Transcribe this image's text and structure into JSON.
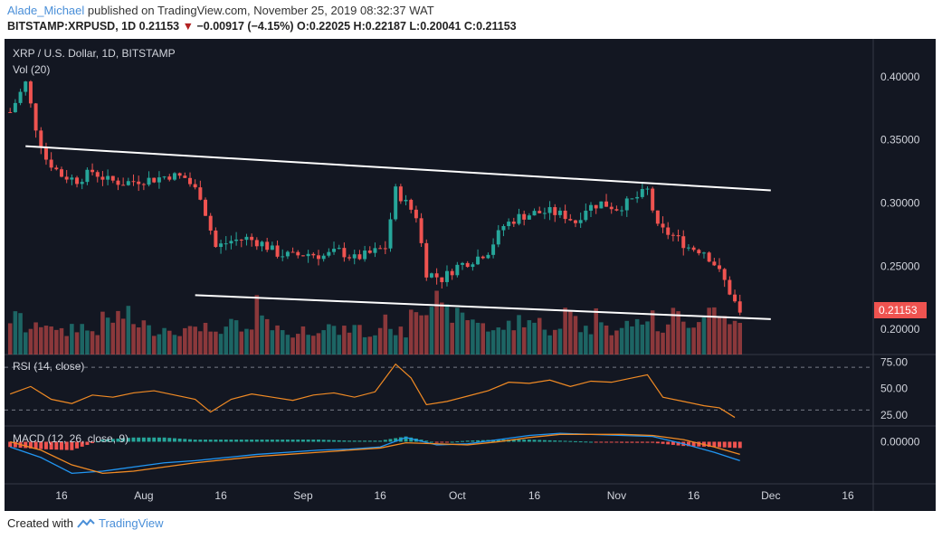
{
  "header": {
    "user": "Alade_Michael",
    "published_text": "published on TradingView.com, November 25, 2019 08:32:37 WAT",
    "symbol": "BITSTAMP:XRPUSD, 1D",
    "price": "0.21153",
    "change": "−0.00917 (−4.15%)",
    "ohlc_o_label": "O:",
    "ohlc_o": "0.22025",
    "ohlc_h_label": "H:",
    "ohlc_h": "0.22187",
    "ohlc_l_label": "L:",
    "ohlc_l": "0.20041",
    "ohlc_c_label": "C:",
    "ohlc_c": "0.21153"
  },
  "panes": {
    "main_title": "XRP / U.S. Dollar, 1D, BITSTAMP",
    "vol_label": "Vol (20)",
    "rsi_label": "RSI (14, close)",
    "macd_label": "MACD (12, 26, close, 9)"
  },
  "last_price_label": "0.21153",
  "footer": {
    "created_with": "Created with",
    "brand": "TradingView"
  },
  "colors": {
    "up": "#26a69a",
    "down": "#ef5350",
    "rsi": "#f08a24",
    "macd": "#2196f3",
    "signal": "#f08a24",
    "trendline": "#ffffff",
    "price_tag": "#ef5350"
  },
  "chart_data": [
    {
      "type": "candlestick",
      "title": "XRP / U.S. Dollar, 1D, BITSTAMP",
      "x_ticks": [
        "16",
        "Aug",
        "16",
        "Sep",
        "16",
        "Oct",
        "16",
        "Nov",
        "16",
        "Dec",
        "16"
      ],
      "x_tick_dates": [
        "2019-07-16",
        "2019-08-01",
        "2019-08-16",
        "2019-09-01",
        "2019-09-16",
        "2019-10-01",
        "2019-10-16",
        "2019-11-01",
        "2019-11-16",
        "2019-12-01",
        "2019-12-16"
      ],
      "y_ticks": [
        "0.40000",
        "0.35000",
        "0.30000",
        "0.25000",
        "0.20000"
      ],
      "ylim": [
        0.18,
        0.43
      ],
      "close_series": [
        [
          "2019-07-06",
          0.372
        ],
        [
          "2019-07-09",
          0.395
        ],
        [
          "2019-07-11",
          0.36
        ],
        [
          "2019-07-13",
          0.335
        ],
        [
          "2019-07-16",
          0.322
        ],
        [
          "2019-07-19",
          0.318
        ],
        [
          "2019-07-22",
          0.325
        ],
        [
          "2019-07-25",
          0.318
        ],
        [
          "2019-07-28",
          0.316
        ],
        [
          "2019-07-31",
          0.318
        ],
        [
          "2019-08-03",
          0.319
        ],
        [
          "2019-08-06",
          0.322
        ],
        [
          "2019-08-09",
          0.32
        ],
        [
          "2019-08-12",
          0.306
        ],
        [
          "2019-08-15",
          0.265
        ],
        [
          "2019-08-18",
          0.27
        ],
        [
          "2019-08-21",
          0.272
        ],
        [
          "2019-08-24",
          0.268
        ],
        [
          "2019-08-27",
          0.26
        ],
        [
          "2019-08-30",
          0.258
        ],
        [
          "2019-09-02",
          0.26
        ],
        [
          "2019-09-05",
          0.258
        ],
        [
          "2019-09-08",
          0.262
        ],
        [
          "2019-09-11",
          0.256
        ],
        [
          "2019-09-14",
          0.26
        ],
        [
          "2019-09-17",
          0.265
        ],
        [
          "2019-09-19",
          0.31
        ],
        [
          "2019-09-21",
          0.3
        ],
        [
          "2019-09-23",
          0.29
        ],
        [
          "2019-09-25",
          0.245
        ],
        [
          "2019-09-28",
          0.24
        ],
        [
          "2019-10-01",
          0.25
        ],
        [
          "2019-10-04",
          0.255
        ],
        [
          "2019-10-07",
          0.262
        ],
        [
          "2019-10-10",
          0.282
        ],
        [
          "2019-10-13",
          0.289
        ],
        [
          "2019-10-16",
          0.292
        ],
        [
          "2019-10-19",
          0.293
        ],
        [
          "2019-10-22",
          0.29
        ],
        [
          "2019-10-24",
          0.285
        ],
        [
          "2019-10-26",
          0.296
        ],
        [
          "2019-10-29",
          0.3
        ],
        [
          "2019-11-01",
          0.296
        ],
        [
          "2019-11-04",
          0.302
        ],
        [
          "2019-11-07",
          0.31
        ],
        [
          "2019-11-09",
          0.28
        ],
        [
          "2019-11-12",
          0.274
        ],
        [
          "2019-11-15",
          0.265
        ],
        [
          "2019-11-18",
          0.262
        ],
        [
          "2019-11-20",
          0.252
        ],
        [
          "2019-11-22",
          0.238
        ],
        [
          "2019-11-24",
          0.221
        ],
        [
          "2019-11-25",
          0.2115
        ]
      ],
      "trendlines": [
        {
          "from": [
            "2019-07-09",
            0.345
          ],
          "to": [
            "2019-12-01",
            0.31
          ]
        },
        {
          "from": [
            "2019-08-11",
            0.227
          ],
          "to": [
            "2019-12-01",
            0.208
          ]
        }
      ],
      "volume_series": [
        42,
        30,
        38,
        25,
        33,
        28,
        40,
        45,
        36,
        29,
        31,
        27,
        35,
        22,
        34,
        26,
        55,
        30,
        24,
        29,
        33,
        27,
        31,
        22,
        38,
        26,
        58,
        62,
        48,
        44,
        40,
        28,
        33,
        41,
        37,
        26,
        52,
        30,
        45,
        28,
        36,
        42,
        30,
        48,
        38,
        52,
        44,
        34,
        29,
        40,
        49,
        36,
        44
      ],
      "volume_label": "Vol (20)"
    },
    {
      "type": "line",
      "title": "RSI (14, close)",
      "y_ticks": [
        "75.00",
        "50.00",
        "25.00"
      ],
      "ylim": [
        15,
        82
      ],
      "levels": [
        70,
        30
      ],
      "values": [
        [
          "2019-07-06",
          45
        ],
        [
          "2019-07-10",
          52
        ],
        [
          "2019-07-14",
          40
        ],
        [
          "2019-07-18",
          36
        ],
        [
          "2019-07-22",
          44
        ],
        [
          "2019-07-26",
          42
        ],
        [
          "2019-07-30",
          46
        ],
        [
          "2019-08-03",
          48
        ],
        [
          "2019-08-07",
          44
        ],
        [
          "2019-08-11",
          40
        ],
        [
          "2019-08-14",
          28
        ],
        [
          "2019-08-18",
          40
        ],
        [
          "2019-08-22",
          45
        ],
        [
          "2019-08-26",
          42
        ],
        [
          "2019-08-30",
          39
        ],
        [
          "2019-09-03",
          44
        ],
        [
          "2019-09-07",
          46
        ],
        [
          "2019-09-11",
          42
        ],
        [
          "2019-09-15",
          47
        ],
        [
          "2019-09-19",
          73
        ],
        [
          "2019-09-22",
          60
        ],
        [
          "2019-09-25",
          35
        ],
        [
          "2019-09-29",
          38
        ],
        [
          "2019-10-03",
          43
        ],
        [
          "2019-10-07",
          48
        ],
        [
          "2019-10-11",
          56
        ],
        [
          "2019-10-15",
          55
        ],
        [
          "2019-10-19",
          58
        ],
        [
          "2019-10-23",
          52
        ],
        [
          "2019-10-27",
          57
        ],
        [
          "2019-10-31",
          56
        ],
        [
          "2019-11-04",
          60
        ],
        [
          "2019-11-07",
          63
        ],
        [
          "2019-11-10",
          42
        ],
        [
          "2019-11-14",
          38
        ],
        [
          "2019-11-18",
          34
        ],
        [
          "2019-11-21",
          32
        ],
        [
          "2019-11-24",
          23
        ]
      ]
    },
    {
      "type": "line",
      "title": "MACD (12, 26, close, 9)",
      "y_ticks": [
        "0.00000"
      ],
      "ylim": [
        -0.04,
        0.015
      ],
      "macd": [
        [
          "2019-07-06",
          -0.005
        ],
        [
          "2019-07-12",
          -0.015
        ],
        [
          "2019-07-18",
          -0.03
        ],
        [
          "2019-07-24",
          -0.028
        ],
        [
          "2019-07-30",
          -0.024
        ],
        [
          "2019-08-05",
          -0.02
        ],
        [
          "2019-08-11",
          -0.018
        ],
        [
          "2019-08-17",
          -0.015
        ],
        [
          "2019-08-23",
          -0.012
        ],
        [
          "2019-08-29",
          -0.01
        ],
        [
          "2019-09-04",
          -0.008
        ],
        [
          "2019-09-10",
          -0.007
        ],
        [
          "2019-09-16",
          -0.005
        ],
        [
          "2019-09-21",
          0.004
        ],
        [
          "2019-09-27",
          -0.003
        ],
        [
          "2019-10-03",
          -0.002
        ],
        [
          "2019-10-09",
          0.002
        ],
        [
          "2019-10-15",
          0.006
        ],
        [
          "2019-10-21",
          0.008
        ],
        [
          "2019-10-27",
          0.007
        ],
        [
          "2019-11-02",
          0.006
        ],
        [
          "2019-11-08",
          0.005
        ],
        [
          "2019-11-14",
          -0.002
        ],
        [
          "2019-11-20",
          -0.01
        ],
        [
          "2019-11-25",
          -0.018
        ]
      ],
      "signal": [
        [
          "2019-07-06",
          0.0
        ],
        [
          "2019-07-12",
          -0.008
        ],
        [
          "2019-07-18",
          -0.022
        ],
        [
          "2019-07-24",
          -0.03
        ],
        [
          "2019-07-30",
          -0.028
        ],
        [
          "2019-08-05",
          -0.024
        ],
        [
          "2019-08-11",
          -0.02
        ],
        [
          "2019-08-17",
          -0.017
        ],
        [
          "2019-08-23",
          -0.014
        ],
        [
          "2019-08-29",
          -0.012
        ],
        [
          "2019-09-04",
          -0.01
        ],
        [
          "2019-09-10",
          -0.008
        ],
        [
          "2019-09-16",
          -0.006
        ],
        [
          "2019-09-21",
          -0.001
        ],
        [
          "2019-09-27",
          -0.002
        ],
        [
          "2019-10-03",
          -0.003
        ],
        [
          "2019-10-09",
          0.0
        ],
        [
          "2019-10-15",
          0.004
        ],
        [
          "2019-10-21",
          0.007
        ],
        [
          "2019-10-27",
          0.007
        ],
        [
          "2019-11-02",
          0.007
        ],
        [
          "2019-11-08",
          0.006
        ],
        [
          "2019-11-14",
          0.002
        ],
        [
          "2019-11-20",
          -0.005
        ],
        [
          "2019-11-25",
          -0.012
        ]
      ]
    }
  ]
}
